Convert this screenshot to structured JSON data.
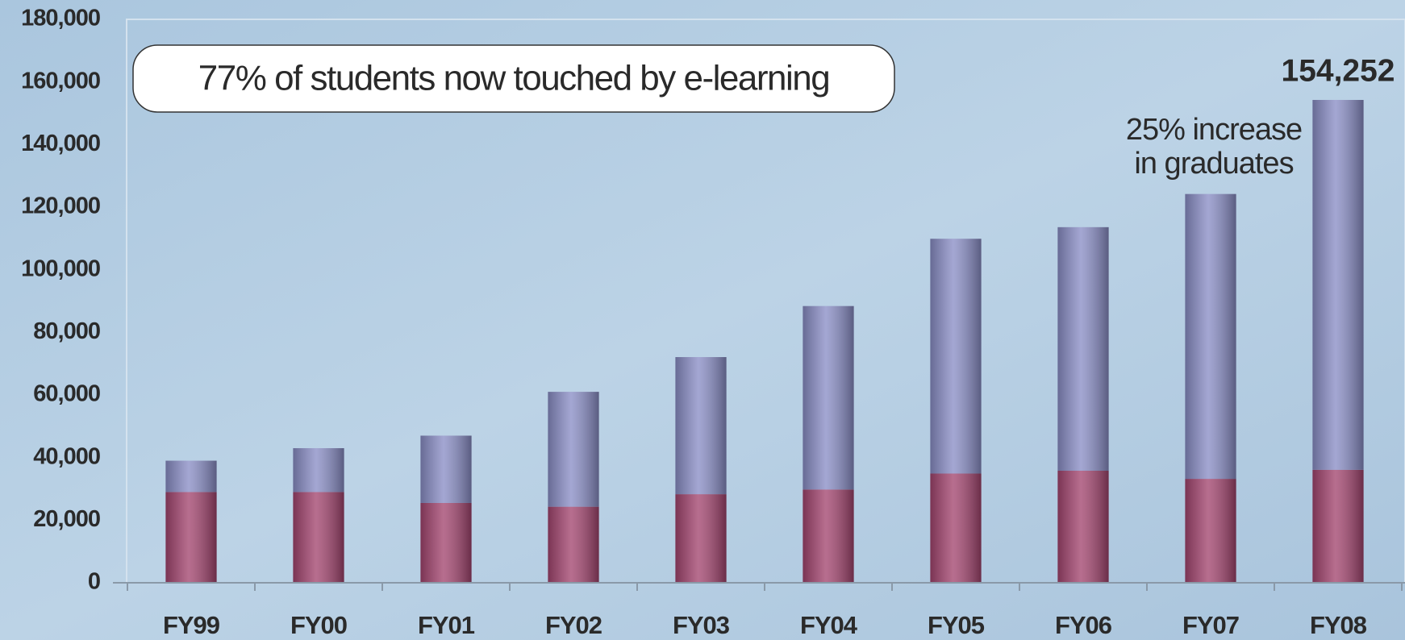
{
  "chart_data": {
    "type": "stacked_bar",
    "callout": "77% of students now touched by e-learning",
    "categories": [
      "FY99",
      "FY00",
      "FY01",
      "FY02",
      "FY03",
      "FY04",
      "FY05",
      "FY06",
      "FY07",
      "FY08"
    ],
    "series": [
      {
        "color": "#a3456f",
        "values": [
          29000,
          29000,
          25500,
          24300,
          28300,
          29800,
          34900,
          35800,
          33200,
          36100
        ]
      },
      {
        "color": "#8a8ec6",
        "values": [
          10000,
          14000,
          21500,
          36700,
          43800,
          58600,
          75000,
          77800,
          91000,
          118152
        ]
      }
    ],
    "ylim": [
      0,
      180000
    ],
    "yticks": [
      {
        "value": 0,
        "label": "0"
      },
      {
        "value": 20000,
        "label": "20,000"
      },
      {
        "value": 40000,
        "label": "40,000"
      },
      {
        "value": 60000,
        "label": "60,000"
      },
      {
        "value": 80000,
        "label": "80,000"
      },
      {
        "value": 100000,
        "label": "100,000"
      },
      {
        "value": 120000,
        "label": "120,000"
      },
      {
        "value": 140000,
        "label": "140,000"
      },
      {
        "value": 160000,
        "label": "160,000"
      },
      {
        "value": 180000,
        "label": "180,000"
      }
    ],
    "total_label": "154,252",
    "annotation": [
      "25% increase",
      "in graduates"
    ]
  }
}
